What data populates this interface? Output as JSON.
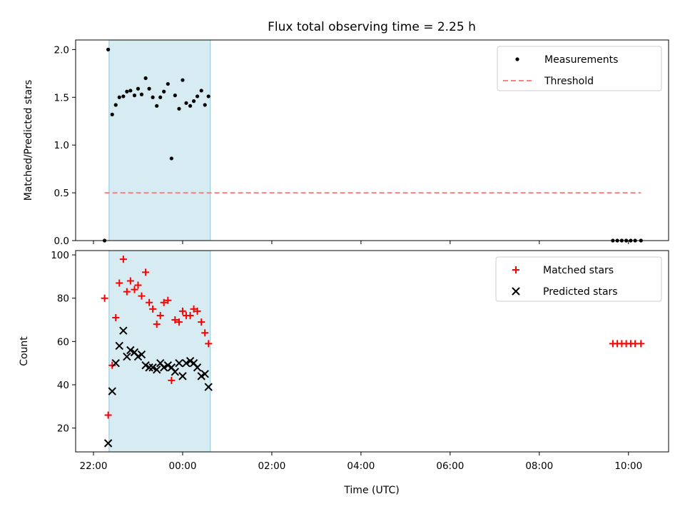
{
  "chart_data": [
    {
      "type": "scatter",
      "title": "Flux total observing time = 2.25 h",
      "xlabel": "",
      "ylabel": "Matched/Predicted stars",
      "x_unit": "hours_since_midnight_UTC",
      "xlim": [
        -2.4,
        10.9
      ],
      "ylim": [
        0.0,
        2.1
      ],
      "yticks": [
        0.0,
        0.5,
        1.0,
        1.5,
        2.0
      ],
      "ytick_labels": [
        "0.0",
        "0.5",
        "1.0",
        "1.5",
        "2.0"
      ],
      "xticks": [
        -2,
        0,
        2,
        4,
        6,
        8,
        10
      ],
      "shaded_span": [
        -1.65,
        0.62
      ],
      "shade_color": "#add8e6",
      "legend_position": "top-right",
      "series": [
        {
          "name": "Measurements",
          "kind": "dots",
          "color": "#000000",
          "x": [
            -1.75,
            -1.67,
            -1.58,
            -1.5,
            -1.42,
            -1.33,
            -1.25,
            -1.17,
            -1.08,
            -1.0,
            -0.92,
            -0.83,
            -0.75,
            -0.67,
            -0.58,
            -0.5,
            -0.42,
            -0.33,
            -0.25,
            -0.17,
            -0.08,
            0.0,
            0.08,
            0.17,
            0.25,
            0.33,
            0.42,
            0.5,
            0.58,
            9.65,
            9.75,
            9.85,
            9.95,
            10.05,
            10.15,
            10.28
          ],
          "y": [
            0.0,
            2.0,
            1.32,
            1.42,
            1.5,
            1.51,
            1.56,
            1.57,
            1.52,
            1.59,
            1.53,
            1.7,
            1.59,
            1.5,
            1.41,
            1.5,
            1.56,
            1.64,
            0.86,
            1.52,
            1.38,
            1.68,
            1.44,
            1.41,
            1.46,
            1.51,
            1.57,
            1.42,
            1.51,
            0.0,
            0.0,
            0.0,
            0.0,
            0.0,
            0.0,
            0.0
          ]
        },
        {
          "name": "Threshold",
          "kind": "dashed-line",
          "color": "#ff8080",
          "x": [
            -1.75,
            10.28
          ],
          "y": [
            0.5,
            0.5
          ]
        }
      ]
    },
    {
      "type": "scatter",
      "title": "",
      "xlabel": "Time (UTC)",
      "ylabel": "Count",
      "x_unit": "hours_since_midnight_UTC",
      "xlim": [
        -2.4,
        10.9
      ],
      "ylim": [
        9,
        102
      ],
      "yticks": [
        20,
        40,
        60,
        80,
        100
      ],
      "ytick_labels": [
        "20",
        "40",
        "60",
        "80",
        "100"
      ],
      "xticks": [
        -2,
        0,
        2,
        4,
        6,
        8,
        10
      ],
      "xtick_labels": [
        "22:00",
        "00:00",
        "02:00",
        "04:00",
        "06:00",
        "08:00",
        "10:00"
      ],
      "shaded_span": [
        -1.65,
        0.62
      ],
      "shade_color": "#add8e6",
      "legend_position": "top-right",
      "series": [
        {
          "name": "Matched stars",
          "kind": "plus",
          "color": "#ff0000",
          "x": [
            -1.75,
            -1.67,
            -1.58,
            -1.5,
            -1.42,
            -1.33,
            -1.25,
            -1.17,
            -1.08,
            -1.0,
            -0.92,
            -0.83,
            -0.75,
            -0.67,
            -0.58,
            -0.5,
            -0.42,
            -0.33,
            -0.25,
            -0.17,
            -0.08,
            0.0,
            0.08,
            0.17,
            0.25,
            0.33,
            0.42,
            0.5,
            0.58,
            9.65,
            9.75,
            9.85,
            9.95,
            10.05,
            10.15,
            10.28
          ],
          "y": [
            80,
            26,
            49,
            71,
            87,
            98,
            83,
            88,
            84,
            86,
            81,
            92,
            78,
            75,
            68,
            72,
            78,
            79,
            42,
            70,
            69,
            74,
            72,
            72,
            75,
            74,
            69,
            64,
            59,
            59,
            59,
            59,
            59,
            59,
            59,
            59
          ]
        },
        {
          "name": "Predicted stars",
          "kind": "x",
          "color": "#000000",
          "x": [
            -1.67,
            -1.58,
            -1.5,
            -1.42,
            -1.33,
            -1.25,
            -1.17,
            -1.08,
            -1.0,
            -0.92,
            -0.83,
            -0.75,
            -0.67,
            -0.58,
            -0.5,
            -0.42,
            -0.33,
            -0.25,
            -0.17,
            -0.08,
            0.0,
            0.08,
            0.17,
            0.25,
            0.33,
            0.42,
            0.5,
            0.58
          ],
          "y": [
            13,
            37,
            50,
            58,
            65,
            53,
            56,
            55,
            53,
            54,
            49,
            48,
            48,
            47,
            50,
            48,
            49,
            48,
            46,
            50,
            44,
            50,
            51,
            50,
            48,
            44,
            45,
            39
          ]
        }
      ]
    }
  ]
}
